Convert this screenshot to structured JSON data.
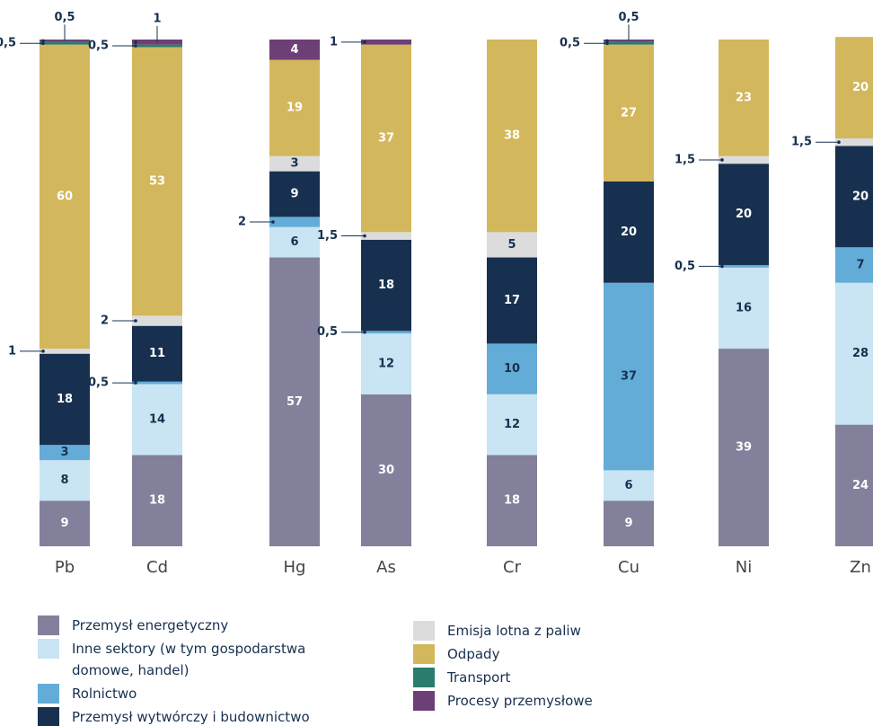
{
  "chart_data": {
    "type": "stacked_bar",
    "categories": [
      "Pb",
      "Cd",
      "Hg",
      "As",
      "Cr",
      "Cu",
      "Ni",
      "Zn"
    ],
    "ylim": [
      0,
      100
    ],
    "series": [
      {
        "name": "Przemysł energetyczny",
        "color": "#83809b",
        "values": [
          9,
          18,
          57,
          30,
          18,
          9,
          39,
          24
        ],
        "value_labels": [
          "9",
          "18",
          "57",
          "30",
          "18",
          "9",
          "39",
          "24"
        ]
      },
      {
        "name": "Inne sektory (w tym gospodarstwa domowe, handel)",
        "color": "#c9e4f3",
        "values": [
          8,
          14,
          6,
          12,
          12,
          6,
          16,
          28
        ],
        "value_labels": [
          "8",
          "14",
          "6",
          "12",
          "12",
          "6",
          "16",
          "28"
        ]
      },
      {
        "name": "Rolnictwo",
        "color": "#63acd8",
        "values": [
          3,
          0.5,
          2,
          0.5,
          10,
          37,
          0.5,
          7
        ],
        "value_labels": [
          "3",
          "0,5",
          "2",
          "0,5",
          "10",
          "37",
          "0,5",
          "7"
        ]
      },
      {
        "name": "Przemysł wytwórczy i budownictwo",
        "color": "#17304f",
        "values": [
          18,
          11,
          9,
          18,
          17,
          20,
          20,
          20
        ],
        "value_labels": [
          "18",
          "11",
          "9",
          "18",
          "17",
          "20",
          "20",
          "20"
        ]
      },
      {
        "name": "Emisja lotna z paliw",
        "color": "#dcdcdc",
        "values": [
          1,
          2,
          3,
          1.5,
          5,
          null,
          1.5,
          1.5
        ],
        "value_labels": [
          "1",
          "2",
          "3",
          "1,5",
          "5",
          null,
          "1,5",
          "1,5"
        ]
      },
      {
        "name": "Odpady",
        "color": "#d3b75c",
        "values": [
          60,
          53,
          19,
          37,
          38,
          27,
          23,
          20
        ],
        "value_labels": [
          "60",
          "53",
          "19",
          "37",
          "38",
          "27",
          "23",
          "20"
        ]
      },
      {
        "name": "Transport",
        "color": "#2a7d6d",
        "values": [
          0.5,
          0.5,
          null,
          null,
          null,
          0.5,
          null,
          null
        ],
        "value_labels": [
          "0,5",
          "0,5",
          null,
          null,
          null,
          "0,5",
          null,
          null
        ]
      },
      {
        "name": "Procesy przemysłowe",
        "color": "#6d3f77",
        "values": [
          0.5,
          1,
          4,
          1,
          null,
          0.5,
          null,
          null
        ],
        "value_labels": [
          "0,5",
          "1",
          "4",
          "1",
          null,
          "0,5",
          null,
          null
        ]
      }
    ]
  }
}
